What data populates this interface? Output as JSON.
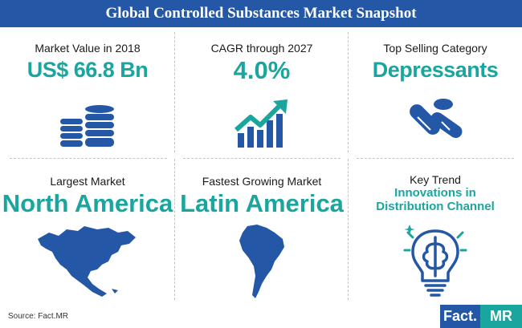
{
  "title": "Global Controlled Substances Market Snapshot",
  "cells": [
    {
      "label": "Market Value in 2018",
      "value": "US$ 66.8 Bn",
      "icon": "coins-stack-icon"
    },
    {
      "label": "CAGR through 2027",
      "value": "4.0%",
      "icon": "growth-chart-icon"
    },
    {
      "label": "Top Selling Category",
      "value": "Depressants",
      "icon": "pills-icon"
    },
    {
      "label": "Largest Market",
      "value": "North America",
      "icon": "north-america-map-icon"
    },
    {
      "label": "Fastest Growing Market",
      "value": "Latin America",
      "icon": "south-america-map-icon"
    },
    {
      "label": "Key Trend",
      "value_line1": "Innovations in",
      "value_line2": "Distribution Channel",
      "icon": "brain-bulb-icon"
    }
  ],
  "source": "Source: Fact.MR",
  "logo": {
    "part1": "Fact.",
    "part2": "MR"
  },
  "colors": {
    "banner": "#2457a5",
    "accent": "#1aa69e",
    "icon_blue": "#2457a5"
  }
}
